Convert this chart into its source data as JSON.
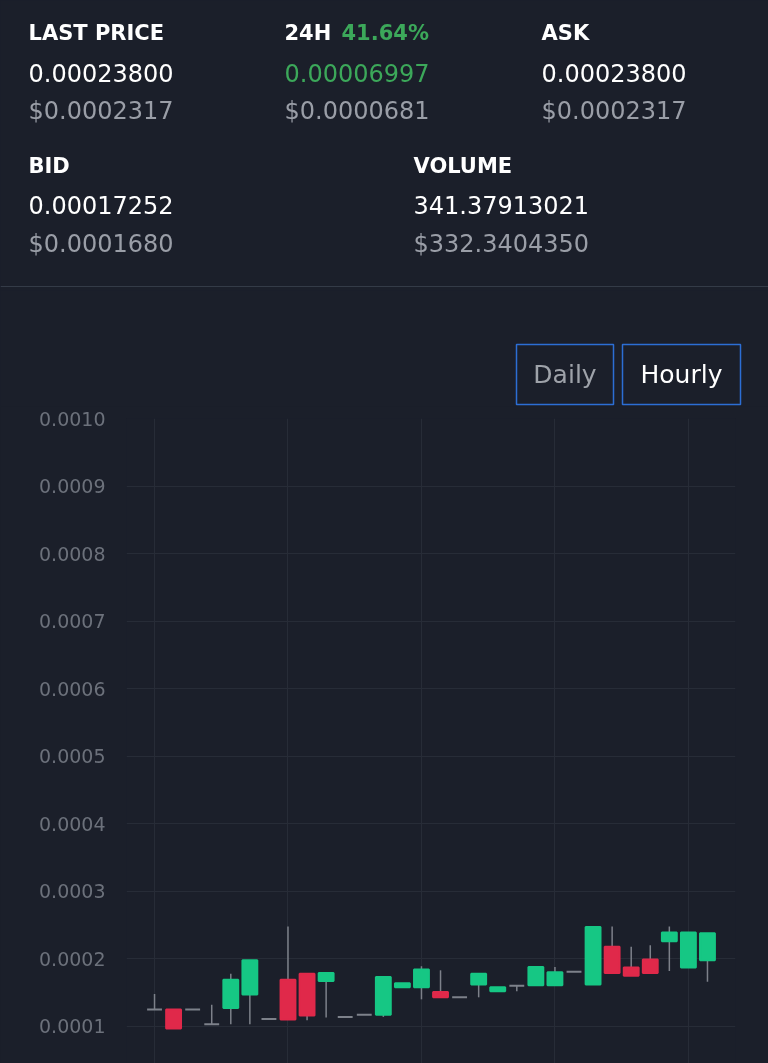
{
  "chart_data": [
    {
      "type": "other",
      "annotations": [
        "LAST PRICE",
        "0.00023800",
        "$0.0002317",
        "24H",
        "41.64%",
        "0.00006997",
        "$0.0000681",
        "ASK",
        "0.00023800",
        "$0.0002317",
        "BID",
        "0.00017252",
        "$0.0001680",
        "VOLUME",
        "341.37913021",
        "$332.3404350"
      ]
    },
    {
      "type": "candlestick",
      "annotations": [
        "Daily",
        "Hourly"
      ],
      "categories": [
        null,
        null,
        null,
        null,
        null,
        null,
        null,
        null,
        null,
        null,
        null,
        null,
        null,
        null,
        null,
        null,
        null,
        null,
        null,
        null,
        null,
        null,
        null,
        null,
        null,
        null,
        null,
        null,
        null,
        null
      ],
      "ohlc": [
        [
          0.000125,
          0.000148,
          0.000125,
          0.000125
        ],
        [
          0.000125,
          0.000125,
          9.7e-05,
          9.7e-05
        ],
        [
          0.000125,
          0.000125,
          0.000125,
          0.000125
        ],
        [
          0.000103,
          0.000132,
          0.000103,
          0.000103
        ],
        [
          0.000127,
          0.000178,
          0.000103,
          0.000169
        ],
        [
          0.000147,
          0.000198,
          0.000103,
          0.000198
        ],
        [
          0.000111,
          0.000111,
          0.000111,
          0.000111
        ],
        [
          0.000169,
          0.000248,
          0.00011,
          0.00011
        ],
        [
          0.000178,
          0.000178,
          0.000109,
          0.000116
        ],
        [
          0.000167,
          0.000179,
          0.000113,
          0.000179
        ],
        [
          0.000114,
          0.000114,
          0.000114,
          0.000114
        ],
        [
          0.000117,
          0.000117,
          0.000117,
          0.000117
        ],
        [
          0.000117,
          0.000173,
          0.000114,
          0.000173
        ],
        [
          0.000158,
          0.000164,
          0.000158,
          0.000164
        ],
        [
          0.000158,
          0.000189,
          0.00014,
          0.000184
        ],
        [
          0.000151,
          0.000183,
          0.000143,
          0.000143
        ],
        [
          0.000143,
          0.000143,
          0.000143,
          0.000143
        ],
        [
          0.000162,
          0.000178,
          0.000143,
          0.000178
        ],
        [
          0.000152,
          0.000158,
          0.000152,
          0.000158
        ],
        [
          0.00016,
          0.00016,
          0.000152,
          0.00016
        ],
        [
          0.000161,
          0.000188,
          0.000161,
          0.000188
        ],
        [
          0.000161,
          0.000188,
          0.000161,
          0.00018
        ],
        [
          0.000181,
          0.000181,
          0.000181,
          0.000181
        ],
        [
          0.000162,
          0.000247,
          0.000162,
          0.000247
        ],
        [
          0.000218,
          0.000248,
          0.000179,
          0.000179
        ],
        [
          0.000187,
          0.000218,
          0.000175,
          0.000175
        ],
        [
          0.000199,
          0.00022,
          0.000179,
          0.000179
        ],
        [
          0.000226,
          0.000248,
          0.000182,
          0.000239
        ],
        [
          0.000187,
          0.000239,
          0.000187,
          0.000239
        ],
        [
          0.000198,
          0.000238,
          0.000166,
          0.000238
        ]
      ],
      "colors": [
        "#7d818a",
        "#e0294a",
        "#7d818a",
        "#7d818a",
        "#16c784",
        "#16c784",
        "#7d818a",
        "#e0294a",
        "#e0294a",
        "#16c784",
        "#7d818a",
        "#7d818a",
        "#16c784",
        "#16c784",
        "#16c784",
        "#e0294a",
        "#7d818a",
        "#16c784",
        "#16c784",
        "#7d818a",
        "#16c784",
        "#16c784",
        "#7d818a",
        "#16c784",
        "#e0294a",
        "#e0294a",
        "#e0294a",
        "#16c784",
        "#16c784",
        "#16c784"
      ],
      "ylim": [
        4.5e-05,
        0.001
      ],
      "yticks": [
        0.0001,
        0.0002,
        0.0003,
        0.0004,
        0.0005,
        0.0006,
        0.0007,
        0.0008,
        0.0009,
        {
          "value": 0.001,
          "label": "0.0010"
        }
      ],
      "grid": true,
      "tick_labels": "y"
    }
  ]
}
